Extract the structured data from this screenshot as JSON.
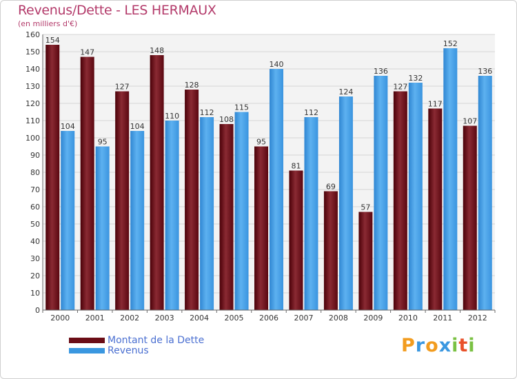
{
  "header": {
    "title": "Revenus/Dette - LES HERMAUX",
    "subtitle": "(en milliers d'€)"
  },
  "legend": {
    "items": [
      {
        "label": "Montant de la Dette",
        "color": "#6b0d16"
      },
      {
        "label": "Revenus",
        "color": "#3a97e0"
      }
    ]
  },
  "logo": {
    "letters": [
      "P",
      "r",
      "o",
      "x",
      "i",
      "t",
      "i"
    ],
    "colors": [
      "#f29c1f",
      "#3a97e0",
      "#f29c1f",
      "#3a97e0",
      "#7ac143",
      "#e9512a",
      "#7ac143"
    ]
  },
  "chart_data": {
    "type": "bar",
    "title": "Revenus/Dette - LES HERMAUX",
    "subtitle": "(en milliers d'€)",
    "categories": [
      "2000",
      "2001",
      "2002",
      "2003",
      "2004",
      "2005",
      "2006",
      "2007",
      "2008",
      "2009",
      "2010",
      "2011",
      "2012"
    ],
    "series": [
      {
        "name": "Montant de la Dette",
        "color": "#6b0d16",
        "values": [
          154,
          147,
          127,
          148,
          128,
          108,
          95,
          81,
          69,
          57,
          127,
          117,
          107
        ]
      },
      {
        "name": "Revenus",
        "color": "#3a97e0",
        "values": [
          104,
          95,
          104,
          110,
          112,
          115,
          140,
          112,
          124,
          136,
          132,
          152,
          136
        ]
      }
    ],
    "ylim": [
      0,
      160
    ],
    "yticks": [
      0,
      10,
      20,
      30,
      40,
      50,
      60,
      70,
      80,
      90,
      100,
      110,
      120,
      130,
      140,
      150,
      160
    ],
    "grid": true,
    "legend": "bottom-left"
  }
}
